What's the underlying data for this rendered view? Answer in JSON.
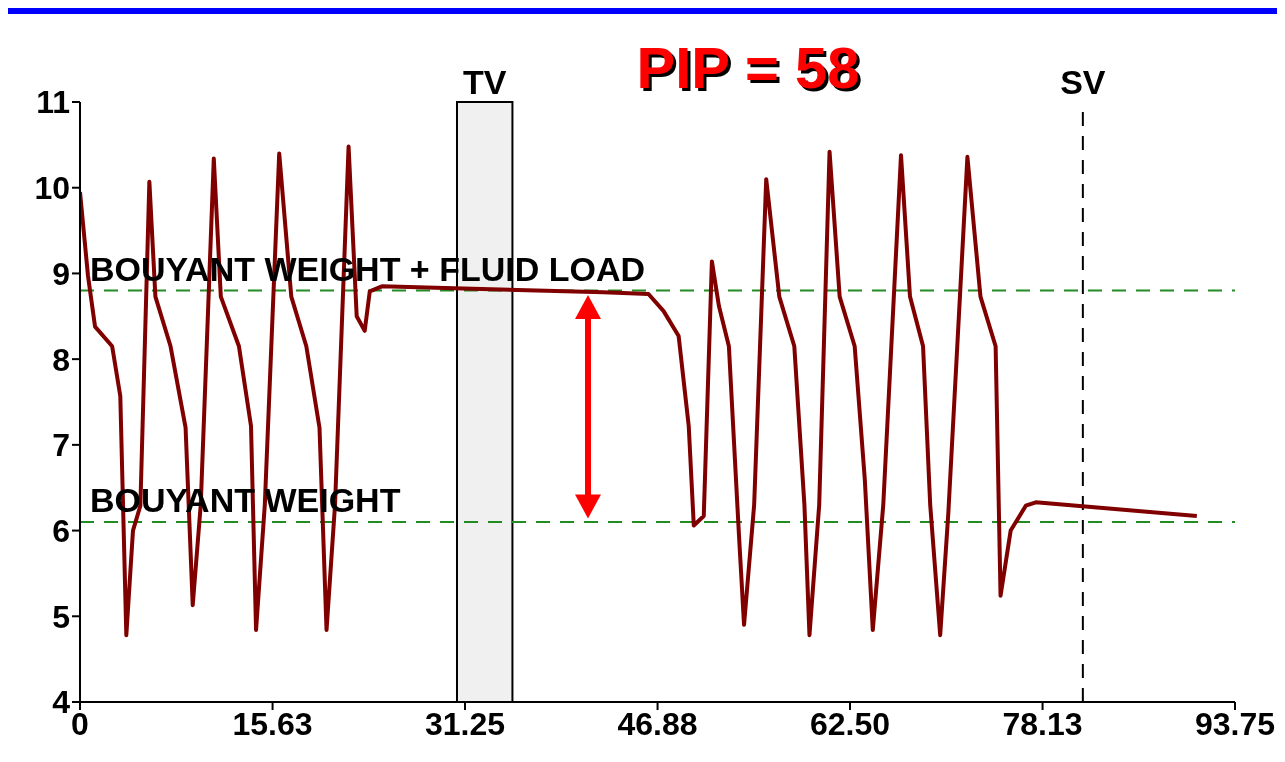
{
  "chart_data": {
    "type": "line",
    "title": "PIP = 58",
    "x": [
      0,
      0.65,
      1.22,
      2.61,
      3.27,
      3.76,
      4.3,
      4.9,
      5.63,
      6.12,
      7.35,
      8.57,
      9.15,
      9.8,
      10.86,
      11.43,
      12.9,
      13.88,
      14.29,
      15.0,
      16.17,
      17.15,
      18.37,
      19.44,
      20.01,
      20.7,
      21.8,
      22.46,
      23.11,
      23.52,
      24.5,
      31.85,
      42.47,
      46.14,
      47.37,
      48.59,
      49.41,
      49.82,
      50.63,
      51.29,
      51.86,
      52.67,
      53.49,
      53.9,
      54.72,
      55.7,
      56.76,
      57.98,
      58.8,
      59.21,
      60.0,
      60.84,
      61.66,
      62.88,
      63.7,
      64.35,
      65.2,
      66.64,
      67.37,
      68.43,
      69.01,
      69.82,
      70.48,
      72.03,
      73.09,
      74.32,
      74.72,
      75.54,
      76.77,
      77.58,
      90.65
    ],
    "series": [
      {
        "color": "#800000",
        "values": [
          9.95,
          8.97,
          8.38,
          8.15,
          7.57,
          4.78,
          6.0,
          6.29,
          10.07,
          8.73,
          8.15,
          7.2,
          5.13,
          6.3,
          10.34,
          8.73,
          8.15,
          7.22,
          4.84,
          6.3,
          10.4,
          8.73,
          8.15,
          7.2,
          4.84,
          6.3,
          10.48,
          8.5,
          8.33,
          8.79,
          8.85,
          8.82,
          8.78,
          8.76,
          8.56,
          8.27,
          7.22,
          6.06,
          6.17,
          9.14,
          8.62,
          8.15,
          5.94,
          4.9,
          6.3,
          10.1,
          8.73,
          8.15,
          6.3,
          4.78,
          6.3,
          10.42,
          8.73,
          8.15,
          6.6,
          4.84,
          6.3,
          10.38,
          8.73,
          8.15,
          6.3,
          4.78,
          6.2,
          10.36,
          8.73,
          8.15,
          5.24,
          6.0,
          6.29,
          6.33,
          6.17
        ]
      }
    ],
    "xlim": [
      0,
      93.75
    ],
    "xticks": [
      0,
      15.63,
      31.25,
      46.88,
      {
        "value": 62.5,
        "label": "62.50"
      },
      78.13,
      93.75
    ],
    "ylim": [
      4,
      11
    ],
    "yticks": [
      4,
      5,
      6,
      7,
      8,
      9,
      10,
      11
    ],
    "ref_lines": [
      {
        "axis": "y",
        "value": 8.8,
        "label": "BOUYANT WEIGHT + FLUID LOAD",
        "color": "#228b22",
        "line_style": "dashed"
      },
      {
        "axis": "y",
        "value": 6.1,
        "label": "BOUYANT WEIGHT",
        "color": "#228b22",
        "line_style": "dashed"
      },
      {
        "axis": "x",
        "value": 81.4,
        "label": "SV",
        "color": "#000000",
        "line_style": "dashed"
      }
    ],
    "bands": [
      {
        "axis": "x",
        "from": 30.6,
        "to": 35.1,
        "label": "TV",
        "color": "#000000"
      }
    ]
  }
}
